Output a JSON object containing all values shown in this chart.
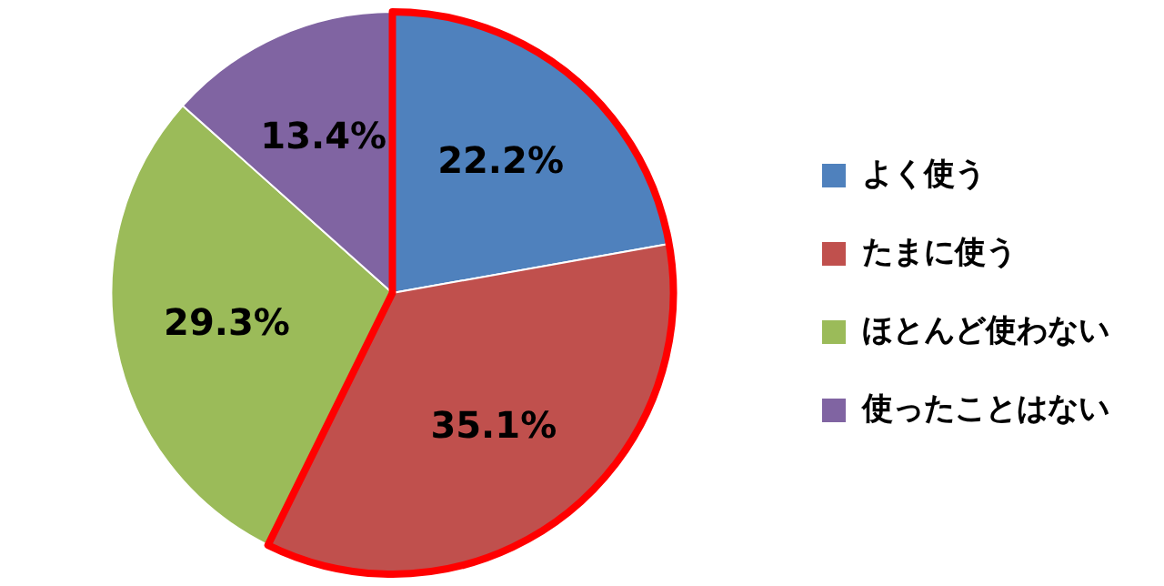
{
  "chart_data": {
    "type": "pie",
    "categories": [
      "よく使う",
      "たまに使う",
      "ほとんど使わない",
      "使ったことはない"
    ],
    "values": [
      22.2,
      35.1,
      29.3,
      13.4
    ],
    "value_labels": [
      "22.2%",
      "35.1%",
      "29.3%",
      "13.4%"
    ],
    "colors": [
      "#4f81bd",
      "#c0504d",
      "#9bbb59",
      "#8064a2"
    ],
    "legend": "right"
  }
}
